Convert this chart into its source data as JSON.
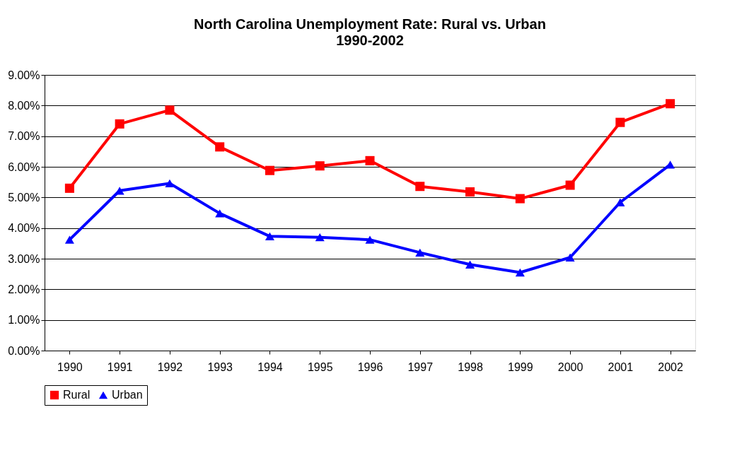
{
  "chart_data": {
    "type": "line",
    "title": "North Carolina Unemployment Rate: Rural vs. Urban",
    "subtitle": "1990-2002",
    "categories": [
      "1990",
      "1991",
      "1992",
      "1993",
      "1994",
      "1995",
      "1996",
      "1997",
      "1998",
      "1999",
      "2000",
      "2001",
      "2002"
    ],
    "series": [
      {
        "name": "Rural",
        "color": "#ff0000",
        "marker": "square",
        "values": [
          5.3,
          7.4,
          7.85,
          6.65,
          5.88,
          6.03,
          6.2,
          5.36,
          5.18,
          4.96,
          5.4,
          7.45,
          8.06
        ]
      },
      {
        "name": "Urban",
        "color": "#0000ff",
        "marker": "triangle",
        "values": [
          3.62,
          5.22,
          5.46,
          4.48,
          3.73,
          3.7,
          3.62,
          3.2,
          2.81,
          2.55,
          3.04,
          4.84,
          6.07
        ]
      }
    ],
    "ylim": [
      0,
      9
    ],
    "yticks": [
      {
        "value": 0,
        "label": "0.00%"
      },
      {
        "value": 1,
        "label": "1.00%"
      },
      {
        "value": 2,
        "label": "2.00%"
      },
      {
        "value": 3,
        "label": "3.00%"
      },
      {
        "value": 4,
        "label": "4.00%"
      },
      {
        "value": 5,
        "label": "5.00%"
      },
      {
        "value": 6,
        "label": "6.00%"
      },
      {
        "value": 7,
        "label": "7.00%"
      },
      {
        "value": 8,
        "label": "8.00%"
      },
      {
        "value": 9,
        "label": "9.00%"
      }
    ],
    "grid": "y",
    "legend": "bottom",
    "line_style": "solid"
  }
}
